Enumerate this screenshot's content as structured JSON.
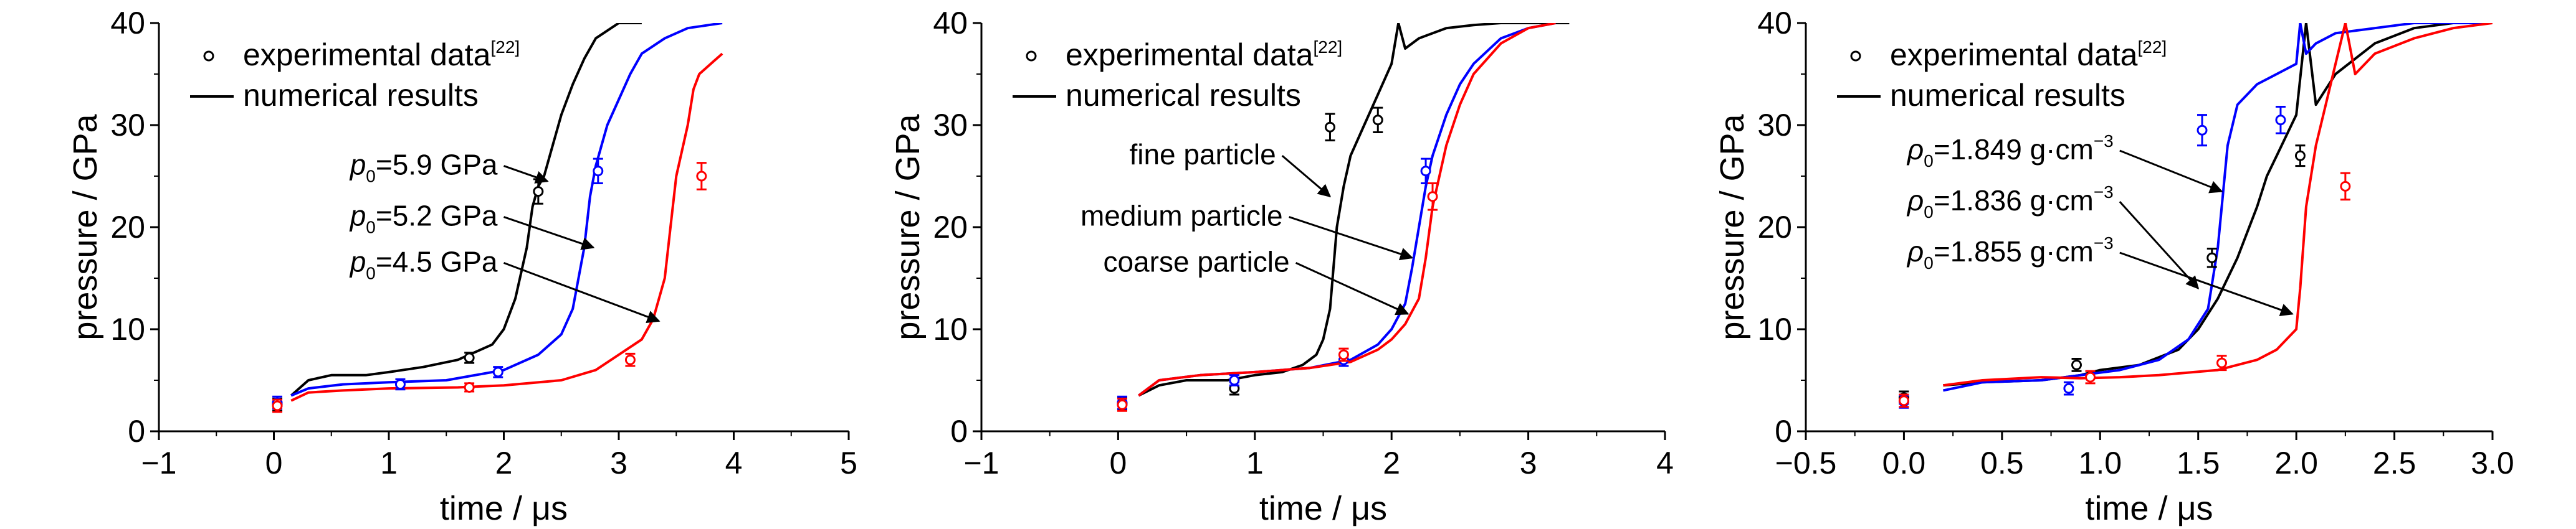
{
  "chart_data": [
    {
      "type": "line",
      "xlabel": "time / μs",
      "ylabel": "pressure / GPa",
      "xlim": [
        -1,
        5
      ],
      "ylim": [
        0,
        40
      ],
      "xticks": [
        -1,
        0,
        1,
        2,
        3,
        4,
        5
      ],
      "yticks": [
        0,
        10,
        20,
        30,
        40
      ],
      "legend": {
        "placement": "top-left",
        "experimental": "experimental data",
        "experimental_ref": "[22]",
        "numerical": "numerical results"
      },
      "series": [
        {
          "color": "#000000",
          "x": [
            0.15,
            0.3,
            0.5,
            0.8,
            1.0,
            1.3,
            1.6,
            1.9,
            2.0,
            2.1,
            2.2,
            2.25,
            2.3,
            2.35,
            2.4,
            2.5,
            2.6,
            2.7,
            2.8,
            3.0,
            3.2
          ],
          "y": [
            3.5,
            5.0,
            5.5,
            5.5,
            5.8,
            6.3,
            7.0,
            8.5,
            10.0,
            13.0,
            18.0,
            22.0,
            24.0,
            25.0,
            27.0,
            31.0,
            34.0,
            36.5,
            38.5,
            40.0,
            40.0
          ]
        },
        {
          "color": "#0000ff",
          "x": [
            0.15,
            0.3,
            0.6,
            1.0,
            1.5,
            2.0,
            2.3,
            2.5,
            2.6,
            2.7,
            2.75,
            2.8,
            2.85,
            2.9,
            3.0,
            3.1,
            3.2,
            3.4,
            3.6,
            3.9
          ],
          "y": [
            3.5,
            4.2,
            4.6,
            4.8,
            5.0,
            6.0,
            7.5,
            9.5,
            12.0,
            18.0,
            23.0,
            26.0,
            28.0,
            30.0,
            32.5,
            35.0,
            37.0,
            38.5,
            39.5,
            40.0
          ]
        },
        {
          "color": "#ff0000",
          "x": [
            0.15,
            0.3,
            0.6,
            1.0,
            1.6,
            2.0,
            2.5,
            2.8,
            3.0,
            3.2,
            3.3,
            3.4,
            3.45,
            3.5,
            3.6,
            3.65,
            3.7,
            3.8,
            3.9
          ],
          "y": [
            3.0,
            3.8,
            4.0,
            4.2,
            4.3,
            4.5,
            5.0,
            6.0,
            7.5,
            9.0,
            11.0,
            15.0,
            20.0,
            25.0,
            30.0,
            33.5,
            35.0,
            36.0,
            37.0
          ]
        }
      ],
      "experimental_points": [
        {
          "color": "#000000",
          "points": [
            {
              "x": 0.03,
              "y": 2.6,
              "err": 0.6
            },
            {
              "x": 1.7,
              "y": 7.2,
              "err": 0.5
            },
            {
              "x": 2.3,
              "y": 23.5,
              "err": 1.2
            }
          ]
        },
        {
          "color": "#0000ff",
          "points": [
            {
              "x": 0.03,
              "y": 2.8,
              "err": 0.6
            },
            {
              "x": 1.1,
              "y": 4.6,
              "err": 0.5
            },
            {
              "x": 1.95,
              "y": 5.8,
              "err": 0.5
            },
            {
              "x": 2.82,
              "y": 25.5,
              "err": 1.2
            }
          ]
        },
        {
          "color": "#ff0000",
          "points": [
            {
              "x": 0.03,
              "y": 2.5,
              "err": 0.6
            },
            {
              "x": 1.7,
              "y": 4.3,
              "err": 0.4
            },
            {
              "x": 3.1,
              "y": 7.0,
              "err": 0.6
            },
            {
              "x": 3.72,
              "y": 25.0,
              "err": 1.3
            }
          ]
        }
      ],
      "annotations": [
        {
          "prefix": "p",
          "sub": "0",
          "text": "=5.9 GPa",
          "from": [
            2.0,
            26.0
          ],
          "to": [
            2.38,
            24.5
          ]
        },
        {
          "prefix": "p",
          "sub": "0",
          "text": "=5.2 GPa",
          "from": [
            2.0,
            21.0
          ],
          "to": [
            2.78,
            18.0
          ]
        },
        {
          "prefix": "p",
          "sub": "0",
          "text": "=4.5 GPa",
          "from": [
            2.0,
            16.5
          ],
          "to": [
            3.35,
            10.8
          ]
        }
      ]
    },
    {
      "type": "line",
      "xlabel": "time / μs",
      "ylabel": "pressure / GPa",
      "xlim": [
        -1,
        4
      ],
      "ylim": [
        0,
        40
      ],
      "xticks": [
        -1,
        0,
        1,
        2,
        3,
        4
      ],
      "yticks": [
        0,
        10,
        20,
        30,
        40
      ],
      "legend": {
        "placement": "top-left",
        "experimental": "experimental data",
        "experimental_ref": "[22]",
        "numerical": "numerical results"
      },
      "series": [
        {
          "color": "#000000",
          "x": [
            0.15,
            0.3,
            0.5,
            0.8,
            1.0,
            1.2,
            1.35,
            1.45,
            1.5,
            1.55,
            1.6,
            1.65,
            1.7,
            1.8,
            1.9,
            2.0,
            2.05,
            2.1,
            2.2,
            2.4,
            2.6,
            2.8,
            3.1,
            3.3
          ],
          "y": [
            3.5,
            4.5,
            5.0,
            5.0,
            5.5,
            5.8,
            6.5,
            7.5,
            9.0,
            12.0,
            20.0,
            24.0,
            27.0,
            30.0,
            33.0,
            36.0,
            40.0,
            37.5,
            38.5,
            39.5,
            39.8,
            40.0,
            40.0,
            40.0
          ]
        },
        {
          "color": "#0000ff",
          "x": [
            0.15,
            0.3,
            0.6,
            1.0,
            1.4,
            1.7,
            1.9,
            2.0,
            2.1,
            2.15,
            2.2,
            2.25,
            2.3,
            2.4,
            2.5,
            2.6,
            2.8,
            3.0,
            3.2
          ],
          "y": [
            3.5,
            5.0,
            5.5,
            5.8,
            6.2,
            7.0,
            8.5,
            10.0,
            12.5,
            16.0,
            20.0,
            24.0,
            27.0,
            31.0,
            34.0,
            36.0,
            38.5,
            39.5,
            40.0
          ]
        },
        {
          "color": "#ff0000",
          "x": [
            0.15,
            0.3,
            0.6,
            1.0,
            1.4,
            1.7,
            1.9,
            2.0,
            2.1,
            2.2,
            2.25,
            2.3,
            2.35,
            2.4,
            2.5,
            2.6,
            2.8,
            3.0,
            3.2
          ],
          "y": [
            3.5,
            5.0,
            5.5,
            5.8,
            6.2,
            6.8,
            8.0,
            9.0,
            10.5,
            13.0,
            17.0,
            22.0,
            25.0,
            28.0,
            32.0,
            35.0,
            38.0,
            39.5,
            40.0
          ]
        }
      ],
      "experimental_points": [
        {
          "color": "#000000",
          "points": [
            {
              "x": 0.03,
              "y": 2.7,
              "err": 0.6
            },
            {
              "x": 0.85,
              "y": 4.2,
              "err": 0.6
            },
            {
              "x": 1.55,
              "y": 29.8,
              "err": 1.3
            },
            {
              "x": 1.9,
              "y": 30.5,
              "err": 1.2
            }
          ]
        },
        {
          "color": "#0000ff",
          "points": [
            {
              "x": 0.03,
              "y": 2.8,
              "err": 0.6
            },
            {
              "x": 0.85,
              "y": 5.0,
              "err": 0.5
            },
            {
              "x": 1.65,
              "y": 7.0,
              "err": 0.6
            },
            {
              "x": 2.25,
              "y": 25.5,
              "err": 1.2
            }
          ]
        },
        {
          "color": "#ff0000",
          "points": [
            {
              "x": 0.03,
              "y": 2.6,
              "err": 0.6
            },
            {
              "x": 1.65,
              "y": 7.5,
              "err": 0.6
            },
            {
              "x": 2.3,
              "y": 23.0,
              "err": 1.3
            }
          ]
        }
      ],
      "annotations": [
        {
          "prefix": "",
          "sub": "",
          "text": "fine particle",
          "from": [
            1.2,
            27.0
          ],
          "to": [
            1.55,
            23.0
          ]
        },
        {
          "prefix": "",
          "sub": "",
          "text": "medium particle",
          "from": [
            1.25,
            21.0
          ],
          "to": [
            2.15,
            17.0
          ]
        },
        {
          "prefix": "",
          "sub": "",
          "text": "coarse particle",
          "from": [
            1.3,
            16.5
          ],
          "to": [
            2.12,
            11.5
          ]
        }
      ]
    },
    {
      "type": "line",
      "xlabel": "time / μs",
      "ylabel": "pressure / GPa",
      "xlim": [
        -0.5,
        3.0
      ],
      "ylim": [
        0,
        40
      ],
      "xticks": [
        -0.5,
        0.0,
        0.5,
        1.0,
        1.5,
        2.0,
        2.5,
        3.0
      ],
      "xtick_labels": [
        "−0.5",
        "0.0",
        "0.5",
        "1.0",
        "1.5",
        "2.0",
        "2.5",
        "3.0"
      ],
      "yticks": [
        0,
        10,
        20,
        30,
        40
      ],
      "legend": {
        "placement": "top-left",
        "experimental": "experimental data",
        "experimental_ref": "[22]",
        "numerical": "numerical results"
      },
      "series": [
        {
          "color": "#000000",
          "x": [
            0.2,
            0.4,
            0.7,
            0.9,
            1.0,
            1.2,
            1.4,
            1.5,
            1.6,
            1.7,
            1.8,
            1.85,
            1.9,
            1.95,
            2.0,
            2.05,
            2.1,
            2.2,
            2.4,
            2.6,
            2.8,
            3.0
          ],
          "y": [
            4.5,
            4.8,
            5.0,
            5.5,
            6.0,
            6.5,
            8.0,
            10.0,
            13.0,
            17.0,
            22.0,
            25.0,
            27.0,
            29.0,
            31.0,
            40.0,
            32.0,
            35.0,
            38.0,
            39.5,
            40.0,
            40.0
          ]
        },
        {
          "color": "#0000ff",
          "x": [
            0.2,
            0.4,
            0.7,
            0.9,
            1.1,
            1.3,
            1.45,
            1.55,
            1.6,
            1.65,
            1.7,
            1.8,
            1.9,
            2.0,
            2.02,
            2.05,
            2.1,
            2.2,
            2.4,
            2.6,
            2.8,
            3.0
          ],
          "y": [
            4.0,
            4.8,
            5.0,
            5.5,
            6.0,
            7.0,
            9.0,
            12.0,
            18.0,
            28.0,
            32.0,
            34.0,
            35.0,
            36.0,
            40.0,
            37.0,
            38.0,
            39.0,
            39.5,
            40.0,
            40.0,
            40.0
          ]
        },
        {
          "color": "#ff0000",
          "x": [
            0.2,
            0.4,
            0.7,
            0.9,
            1.1,
            1.3,
            1.6,
            1.8,
            1.9,
            2.0,
            2.02,
            2.05,
            2.1,
            2.15,
            2.2,
            2.25,
            2.3,
            2.4,
            2.6,
            2.8,
            3.0
          ],
          "y": [
            4.5,
            5.0,
            5.3,
            5.2,
            5.3,
            5.5,
            6.0,
            7.0,
            8.0,
            10.0,
            14.0,
            22.0,
            28.0,
            32.0,
            36.0,
            40.0,
            35.0,
            37.0,
            38.5,
            39.5,
            40.0
          ]
        }
      ],
      "experimental_points": [
        {
          "color": "#000000",
          "points": [
            {
              "x": 0.0,
              "y": 3.3,
              "err": 0.6
            },
            {
              "x": 0.88,
              "y": 6.5,
              "err": 0.6
            },
            {
              "x": 1.57,
              "y": 17.0,
              "err": 0.9
            },
            {
              "x": 2.02,
              "y": 27.0,
              "err": 1.0
            }
          ]
        },
        {
          "color": "#0000ff",
          "points": [
            {
              "x": 0.0,
              "y": 2.9,
              "err": 0.6
            },
            {
              "x": 0.84,
              "y": 4.2,
              "err": 0.6
            },
            {
              "x": 1.52,
              "y": 29.5,
              "err": 1.5
            },
            {
              "x": 1.92,
              "y": 30.5,
              "err": 1.3
            }
          ]
        },
        {
          "color": "#ff0000",
          "points": [
            {
              "x": 0.0,
              "y": 3.0,
              "err": 0.6
            },
            {
              "x": 0.95,
              "y": 5.3,
              "err": 0.6
            },
            {
              "x": 1.62,
              "y": 6.7,
              "err": 0.7
            },
            {
              "x": 2.25,
              "y": 24.0,
              "err": 1.3
            }
          ]
        }
      ],
      "annotations": [
        {
          "prefix": "ρ",
          "sub": "0",
          "text": "=1.849 g·cm",
          "sup": "−3",
          "from": [
            1.1,
            27.5
          ],
          "to": [
            1.62,
            23.5
          ]
        },
        {
          "prefix": "ρ",
          "sub": "0",
          "text": "=1.836 g·cm",
          "sup": "−3",
          "from": [
            1.1,
            22.5
          ],
          "to": [
            1.5,
            14.0
          ]
        },
        {
          "prefix": "ρ",
          "sub": "0",
          "text": "=1.855 g·cm",
          "sup": "−3",
          "from": [
            1.1,
            17.5
          ],
          "to": [
            1.98,
            11.5
          ]
        }
      ]
    }
  ]
}
